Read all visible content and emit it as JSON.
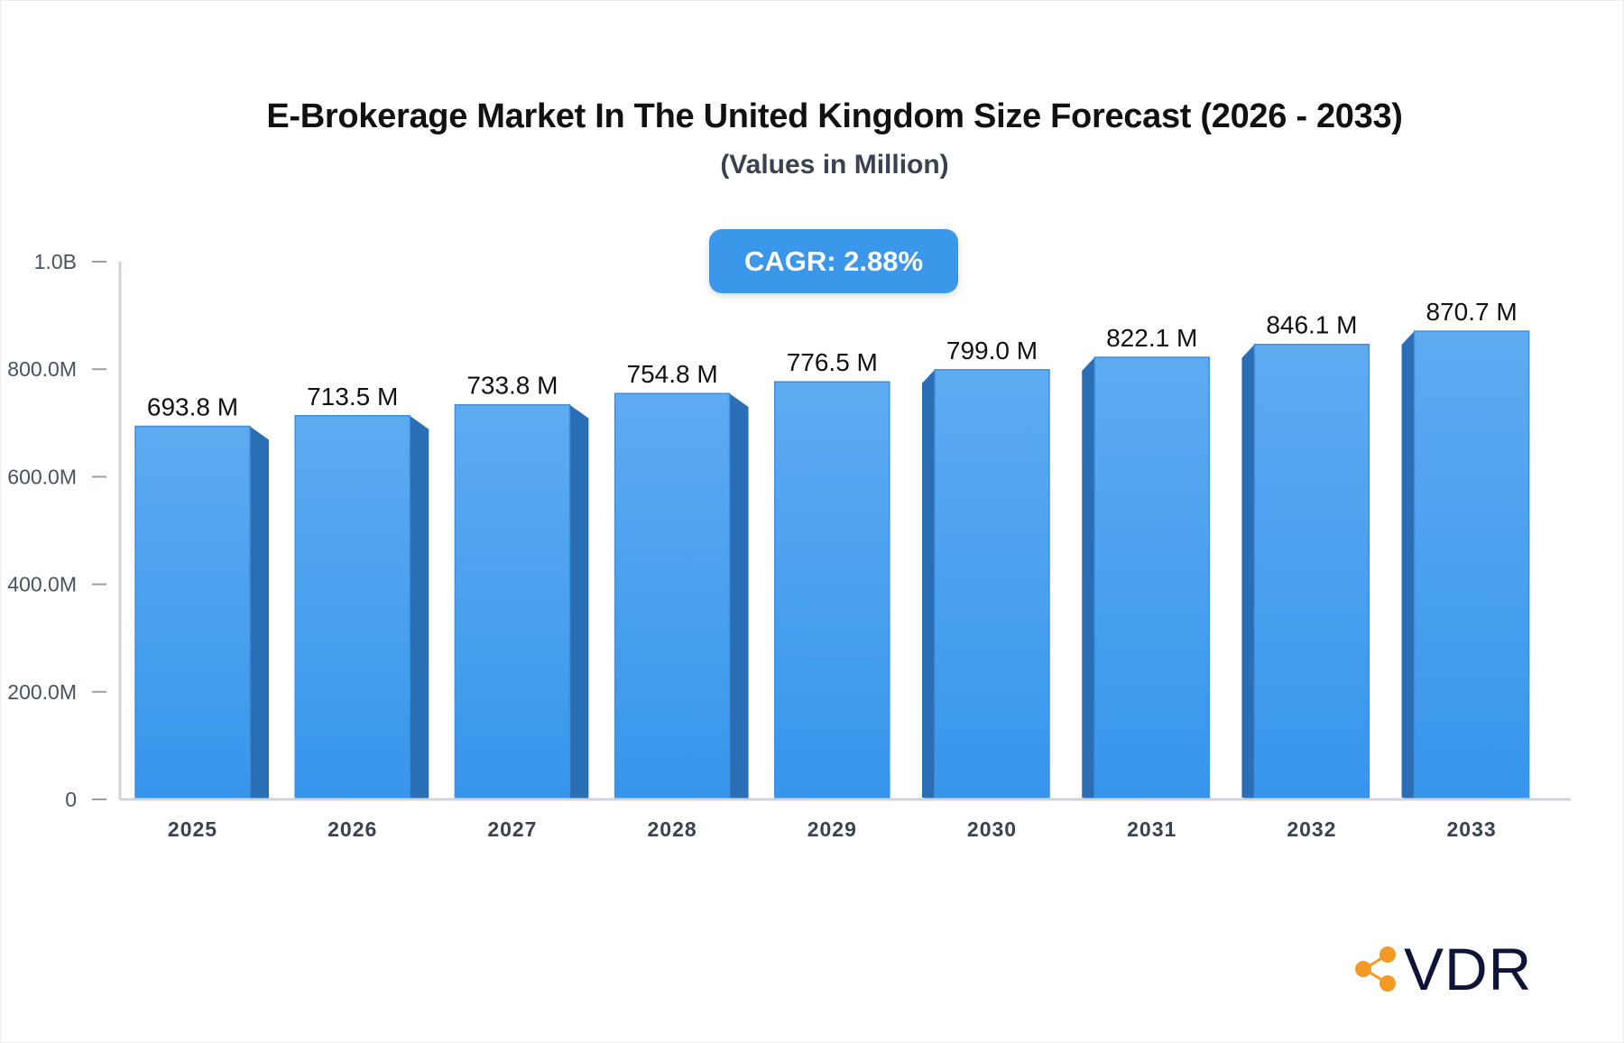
{
  "chart_data": {
    "type": "bar",
    "title": "E-Brokerage Market In The United Kingdom Size Forecast (2026 - 2033)",
    "subtitle": "(Values in Million)",
    "categories": [
      "2025",
      "2026",
      "2027",
      "2028",
      "2029",
      "2030",
      "2031",
      "2032",
      "2033"
    ],
    "values": [
      693.8,
      713.5,
      733.8,
      754.8,
      776.5,
      799.0,
      822.1,
      846.1,
      870.7
    ],
    "data_labels": [
      "693.8 M",
      "713.5 M",
      "733.8 M",
      "754.8 M",
      "776.5 M",
      "799.0 M",
      "822.1 M",
      "846.1 M",
      "870.7 M"
    ],
    "unit": "Million",
    "ylim": [
      0,
      1000
    ],
    "yticks": [
      0,
      200,
      400,
      600,
      800,
      1000
    ],
    "ytick_labels": [
      "0",
      "200.0M",
      "400.0M",
      "600.0M",
      "800.0M",
      "1.0B"
    ],
    "xlabel": "",
    "ylabel": "",
    "grid": false,
    "colors": {
      "bar_top": "#5eabf1",
      "bar_bottom": "#3696ec",
      "bar_side": "#2a6fb5",
      "axis": "#d0d3da"
    }
  },
  "cagr_label": "CAGR: 2.88%",
  "logo": {
    "text": "VDR",
    "icon": "share-nodes-icon",
    "color": "#f39a26"
  }
}
